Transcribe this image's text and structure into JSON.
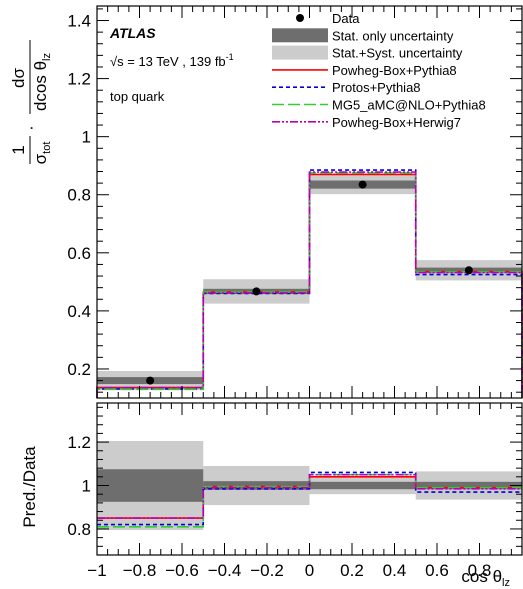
{
  "chart_data": {
    "type": "histogram",
    "experiment": "ATLAS",
    "energy_text": "√s = 13 TeV , 139 fb",
    "energy_superscript": "-1",
    "particle_text": "top quark",
    "bin_edges": [
      -1,
      -0.5,
      0,
      0.5,
      1
    ],
    "xlim": [
      -1,
      1
    ],
    "x_ticks": [
      -1,
      -0.8,
      -0.6,
      -0.4,
      -0.2,
      0,
      0.2,
      0.4,
      0.6,
      0.8
    ],
    "x_tick_labels": [
      "−1",
      "−0.8",
      "−0.6",
      "−0.4",
      "−0.2",
      "0",
      "0.2",
      "0.4",
      "0.6",
      "0.8"
    ],
    "xlabel": "cos θ",
    "xlabel_sub": "lz",
    "main_panel": {
      "ylim": [
        0.1,
        1.45
      ],
      "y_ticks": [
        0.2,
        0.4,
        0.6,
        0.8,
        1.0,
        1.2,
        1.4
      ],
      "y_tick_labels": [
        "0.2",
        "0.4",
        "0.6",
        "0.8",
        "1",
        "1.2",
        "1.4"
      ],
      "ylabel_fraction_num": "1",
      "ylabel_fraction_den": "σ",
      "ylabel_fraction_den_sub": "tot",
      "ylabel_dot": "·",
      "ylabel_deriv_num": "dσ",
      "ylabel_deriv_den": "dcos θ",
      "ylabel_deriv_den_sub": "lz",
      "data": {
        "name": "Data",
        "x": [
          -0.75,
          -0.25,
          0.25,
          0.75
        ],
        "y": [
          0.16,
          0.467,
          0.835,
          0.54
        ]
      },
      "stat_band": {
        "name": "Stat. only uncertainty",
        "color": "#6e6e6e",
        "down": [
          0.148,
          0.458,
          0.821,
          0.531
        ],
        "up": [
          0.172,
          0.476,
          0.849,
          0.549
        ]
      },
      "syst_band": {
        "name": "Stat.+Syst. uncertainty",
        "color": "#cccccc",
        "down": [
          0.127,
          0.425,
          0.802,
          0.505
        ],
        "up": [
          0.193,
          0.509,
          0.868,
          0.575
        ]
      },
      "series": [
        {
          "name": "Powheg-Box+Pythia8",
          "color": "#ff0000",
          "dash": "",
          "values": [
            0.136,
            0.465,
            0.87,
            0.535
          ]
        },
        {
          "name": "Protos+Pythia8",
          "color": "#0000dd",
          "dash": "4,3",
          "values": [
            0.131,
            0.46,
            0.885,
            0.525
          ]
        },
        {
          "name": "MG5_aMC@NLO+Pythia8",
          "color": "#33cc33",
          "dash": "12,4",
          "values": [
            0.13,
            0.465,
            0.875,
            0.535
          ]
        },
        {
          "name": "Powheg-Box+Herwig7",
          "color": "#bb00bb",
          "dash": "8,2,2,2,2,2",
          "values": [
            0.136,
            0.462,
            0.878,
            0.532
          ]
        }
      ]
    },
    "ratio_panel": {
      "ylabel": "Pred./Data",
      "ylim": [
        0.68,
        1.38
      ],
      "y_ticks": [
        0.8,
        1.0,
        1.2
      ],
      "y_tick_labels": [
        "0.8",
        "1",
        "1.2"
      ],
      "stat_band": {
        "down": [
          0.925,
          0.98,
          0.983,
          0.983
        ],
        "up": [
          1.075,
          1.02,
          1.017,
          1.017
        ]
      },
      "syst_band": {
        "down": [
          0.795,
          0.91,
          0.96,
          0.935
        ],
        "up": [
          1.205,
          1.09,
          1.04,
          1.065
        ]
      },
      "series": [
        {
          "name": "Powheg-Box+Pythia8",
          "values": [
            0.85,
            0.995,
            1.04,
            0.99
          ]
        },
        {
          "name": "Protos+Pythia8",
          "values": [
            0.82,
            0.985,
            1.06,
            0.97
          ]
        },
        {
          "name": "MG5_aMC@NLO+Pythia8",
          "values": [
            0.81,
            0.995,
            1.05,
            0.99
          ]
        },
        {
          "name": "Powheg-Box+Herwig7",
          "values": [
            0.85,
            0.99,
            1.05,
            0.985
          ]
        }
      ]
    }
  }
}
